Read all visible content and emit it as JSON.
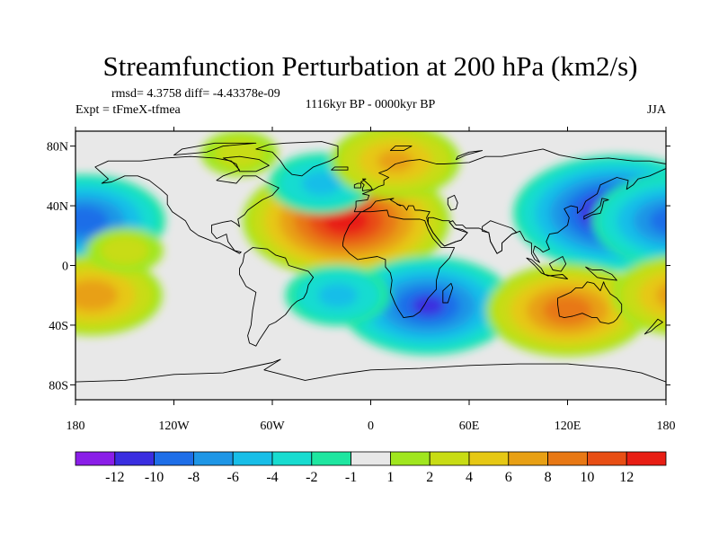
{
  "chart_data": {
    "type": "heatmap",
    "title": "Streamfunction Perturbation at 200 hPa (km2/s)",
    "stats_text": "rmsd= 4.3758 diff= -4.43378e-09",
    "left_subtitle": "Expt = tFmeX-tfmea",
    "center_subtitle": "1116kyr BP - 0000kyr BP",
    "right_subtitle": "JJA",
    "x_range": [
      -180,
      180
    ],
    "y_range": [
      -90,
      90
    ],
    "x_ticks": [
      {
        "value": -180,
        "label": "180"
      },
      {
        "value": -120,
        "label": "120W"
      },
      {
        "value": -60,
        "label": "60W"
      },
      {
        "value": 0,
        "label": "0"
      },
      {
        "value": 60,
        "label": "60E"
      },
      {
        "value": 120,
        "label": "120E"
      },
      {
        "value": 180,
        "label": "180"
      }
    ],
    "y_ticks": [
      {
        "value": 80,
        "label": "80N"
      },
      {
        "value": 40,
        "label": "40N"
      },
      {
        "value": 0,
        "label": "0"
      },
      {
        "value": -40,
        "label": "40S"
      },
      {
        "value": -80,
        "label": "80S"
      }
    ],
    "colorbar": {
      "colors": [
        "#8a1ee8",
        "#3a2ee0",
        "#1e6ee8",
        "#1e96e6",
        "#18bee8",
        "#18dcd0",
        "#1ee6a0",
        "#e8e8e8",
        "#a0e61e",
        "#c8dc14",
        "#e6c814",
        "#e8a014",
        "#e87814",
        "#e84e14",
        "#e81e14"
      ],
      "labels": [
        "-12",
        "-10",
        "-8",
        "-6",
        "-4",
        "-2",
        "-1",
        "1",
        "2",
        "4",
        "6",
        "8",
        "10",
        "12"
      ],
      "levels": [
        -12,
        -10,
        -8,
        -6,
        -4,
        -2,
        -1,
        1,
        2,
        4,
        6,
        8,
        10,
        12
      ]
    },
    "field_features": [
      {
        "name": "north-africa-high",
        "lon": -15,
        "lat": 30,
        "value": 13
      },
      {
        "name": "west-pacific-low",
        "lon": 150,
        "lat": 35,
        "value": -13
      },
      {
        "name": "east-pacific-low",
        "lon": -175,
        "lat": 30,
        "value": -9
      },
      {
        "name": "southern-africa-low",
        "lon": 35,
        "lat": -27,
        "value": -10
      },
      {
        "name": "australia-high",
        "lon": 120,
        "lat": -30,
        "value": 9
      },
      {
        "name": "south-pacific-high",
        "lon": -170,
        "lat": -20,
        "value": 7
      },
      {
        "name": "south-atlantic-low",
        "lon": -20,
        "lat": -20,
        "value": -4
      },
      {
        "name": "north-atlantic-low",
        "lon": -30,
        "lat": 55,
        "value": -4
      },
      {
        "name": "scandinavia-high",
        "lon": 15,
        "lat": 70,
        "value": 6
      },
      {
        "name": "tropical-pacific-positive",
        "lon": -150,
        "lat": 10,
        "value": 2
      },
      {
        "name": "arctic-positive",
        "lon": -80,
        "lat": 75,
        "value": 2
      }
    ]
  }
}
